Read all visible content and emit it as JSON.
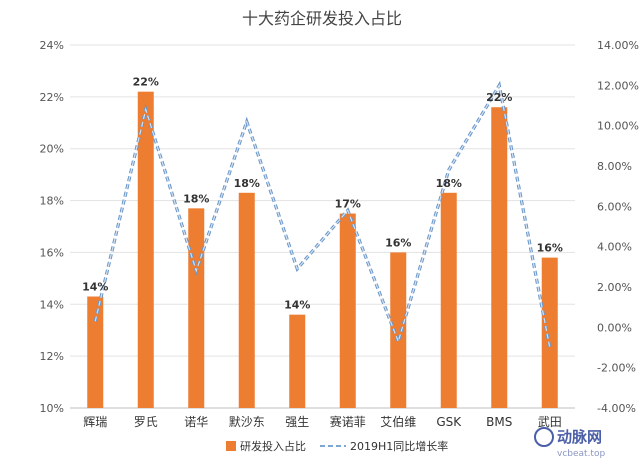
{
  "chart_data": {
    "type": "bar",
    "title": "十大药企研发投入占比",
    "categories": [
      "辉瑞",
      "罗氏",
      "诺华",
      "默沙东",
      "强生",
      "赛诺菲",
      "艾伯维",
      "GSK",
      "BMS",
      "武田"
    ],
    "series": [
      {
        "name": "研发投入占比",
        "type": "bar",
        "axis": "left",
        "values": [
          14.3,
          22.2,
          17.7,
          18.3,
          13.6,
          17.5,
          16.0,
          18.3,
          21.6,
          15.8
        ],
        "labels": [
          "14%",
          "22%",
          "18%",
          "18%",
          "14%",
          "17%",
          "16%",
          "18%",
          "22%",
          "16%"
        ],
        "color": "#ED7D31"
      },
      {
        "name": "2019H1同比增长率",
        "type": "line",
        "axis": "right",
        "values": [
          0.3,
          10.8,
          2.8,
          10.2,
          2.9,
          5.8,
          -0.7,
          7.8,
          12.0,
          -1.0
        ],
        "color": "#7FA7D3"
      }
    ],
    "y_left": {
      "min": 10,
      "max": 24,
      "step": 2,
      "ticks": [
        "10%",
        "12%",
        "14%",
        "16%",
        "18%",
        "20%",
        "22%",
        "24%"
      ]
    },
    "y_right": {
      "min": -4,
      "max": 14,
      "step": 2,
      "ticks": [
        "-4.00%",
        "-2.00%",
        "0.00%",
        "2.00%",
        "4.00%",
        "6.00%",
        "8.00%",
        "10.00%",
        "12.00%",
        "14.00%"
      ]
    },
    "grid": true,
    "legend_position": "bottom"
  },
  "watermark": {
    "text": "动脉网",
    "sub": "vcbeat.top"
  }
}
